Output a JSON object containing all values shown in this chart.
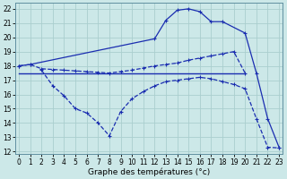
{
  "xlabel": "Graphe des températures (°c)",
  "bg_color": "#cce8e8",
  "line_color": "#1a2db0",
  "xlim": [
    -0.3,
    23.3
  ],
  "ylim": [
    11.8,
    22.4
  ],
  "xticks": [
    0,
    1,
    2,
    3,
    4,
    5,
    6,
    7,
    8,
    9,
    10,
    11,
    12,
    13,
    14,
    15,
    16,
    17,
    18,
    19,
    20,
    21,
    22,
    23
  ],
  "yticks": [
    12,
    13,
    14,
    15,
    16,
    17,
    18,
    19,
    20,
    21,
    22
  ],
  "series": [
    {
      "x": [
        0,
        20
      ],
      "y": [
        17.5,
        17.5
      ],
      "style": "-",
      "marker": null,
      "lw": 1.0,
      "ms": 0
    },
    {
      "x": [
        0,
        1,
        2,
        3,
        4,
        5,
        6,
        7,
        8,
        9,
        10,
        11,
        12,
        13,
        14,
        15,
        16,
        17,
        18,
        19,
        20
      ],
      "y": [
        18.0,
        18.1,
        17.8,
        17.75,
        17.7,
        17.65,
        17.6,
        17.55,
        17.5,
        17.6,
        17.7,
        17.85,
        18.0,
        18.1,
        18.2,
        18.4,
        18.55,
        18.7,
        18.85,
        19.0,
        17.5
      ],
      "style": "--",
      "marker": "+",
      "lw": 0.9,
      "ms": 3
    },
    {
      "x": [
        0,
        1,
        12,
        13,
        14,
        15,
        16,
        17,
        18,
        20,
        21,
        22,
        23
      ],
      "y": [
        18.0,
        18.1,
        19.9,
        21.2,
        21.9,
        22.0,
        21.8,
        21.1,
        21.1,
        20.3,
        17.5,
        14.3,
        12.3
      ],
      "style": "-",
      "marker": "+",
      "lw": 0.9,
      "ms": 3
    },
    {
      "x": [
        2,
        3,
        4,
        5,
        6,
        7,
        8,
        9,
        10,
        11,
        12,
        13,
        14,
        15,
        16,
        17,
        18,
        19,
        20,
        21,
        22,
        23
      ],
      "y": [
        17.7,
        16.6,
        15.9,
        15.0,
        14.7,
        14.0,
        13.1,
        14.8,
        15.7,
        16.2,
        16.6,
        16.9,
        17.0,
        17.1,
        17.2,
        17.1,
        16.9,
        16.7,
        16.4,
        14.3,
        12.3,
        12.25
      ],
      "style": "--",
      "marker": "+",
      "lw": 0.9,
      "ms": 3
    }
  ],
  "grid_color": "#aacece",
  "tick_fontsize": 5.5,
  "xlabel_fontsize": 6.5
}
